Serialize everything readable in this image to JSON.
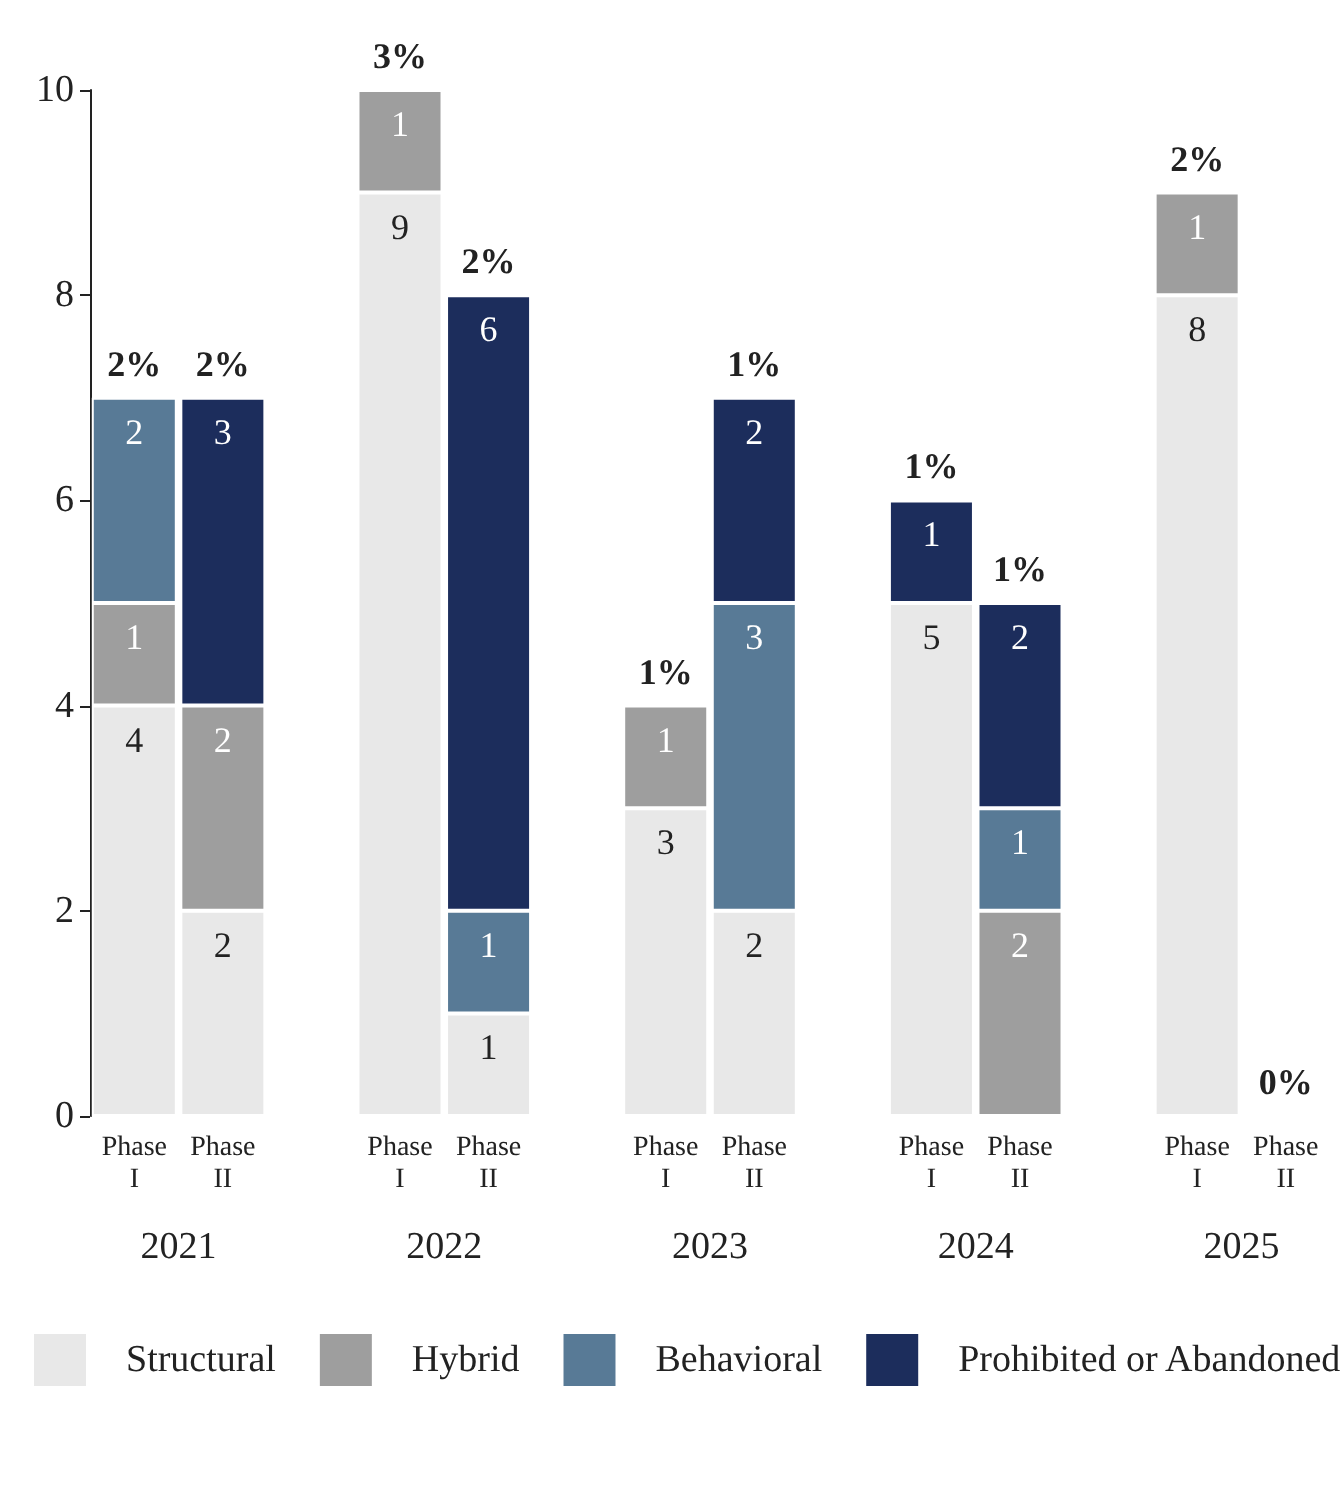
{
  "chart_data": {
    "type": "bar",
    "stacked": true,
    "categories": [
      "Phase\nI",
      "Phase\nII",
      "Phase\nI",
      "Phase\nII",
      "Phase\nI",
      "Phase\nII",
      "Phase\nI",
      "Phase\nII",
      "Phase\nI",
      "Phase\nII"
    ],
    "series": [
      {
        "name": "Structural",
        "color": "#e8e8e8",
        "values": [
          4,
          2,
          9,
          1,
          3,
          2,
          5,
          null,
          8,
          null
        ]
      },
      {
        "name": "Hybrid",
        "color": "#9e9e9e",
        "values": [
          1,
          2,
          1,
          null,
          1,
          null,
          null,
          2,
          1,
          null
        ]
      },
      {
        "name": "Behavioral",
        "color": "#587a96",
        "values": [
          2,
          null,
          null,
          1,
          null,
          3,
          null,
          1,
          null,
          null
        ]
      },
      {
        "name": "Prohibited or Abandoned",
        "color": "#1c2d5c",
        "values": [
          null,
          3,
          null,
          6,
          null,
          2,
          1,
          2,
          null,
          null
        ]
      }
    ],
    "annotations": [
      "2%",
      "2%",
      "3%",
      "2%",
      "1%",
      "1%",
      "1%",
      "1%",
      "2%",
      "0%",
      "2021",
      "2022",
      "2023",
      "2024",
      "2025"
    ],
    "ylim": [
      0,
      10
    ],
    "yticks": [
      0,
      2,
      4,
      6,
      8,
      10
    ],
    "data_labels": true,
    "grid": false,
    "legend": "bottom"
  }
}
